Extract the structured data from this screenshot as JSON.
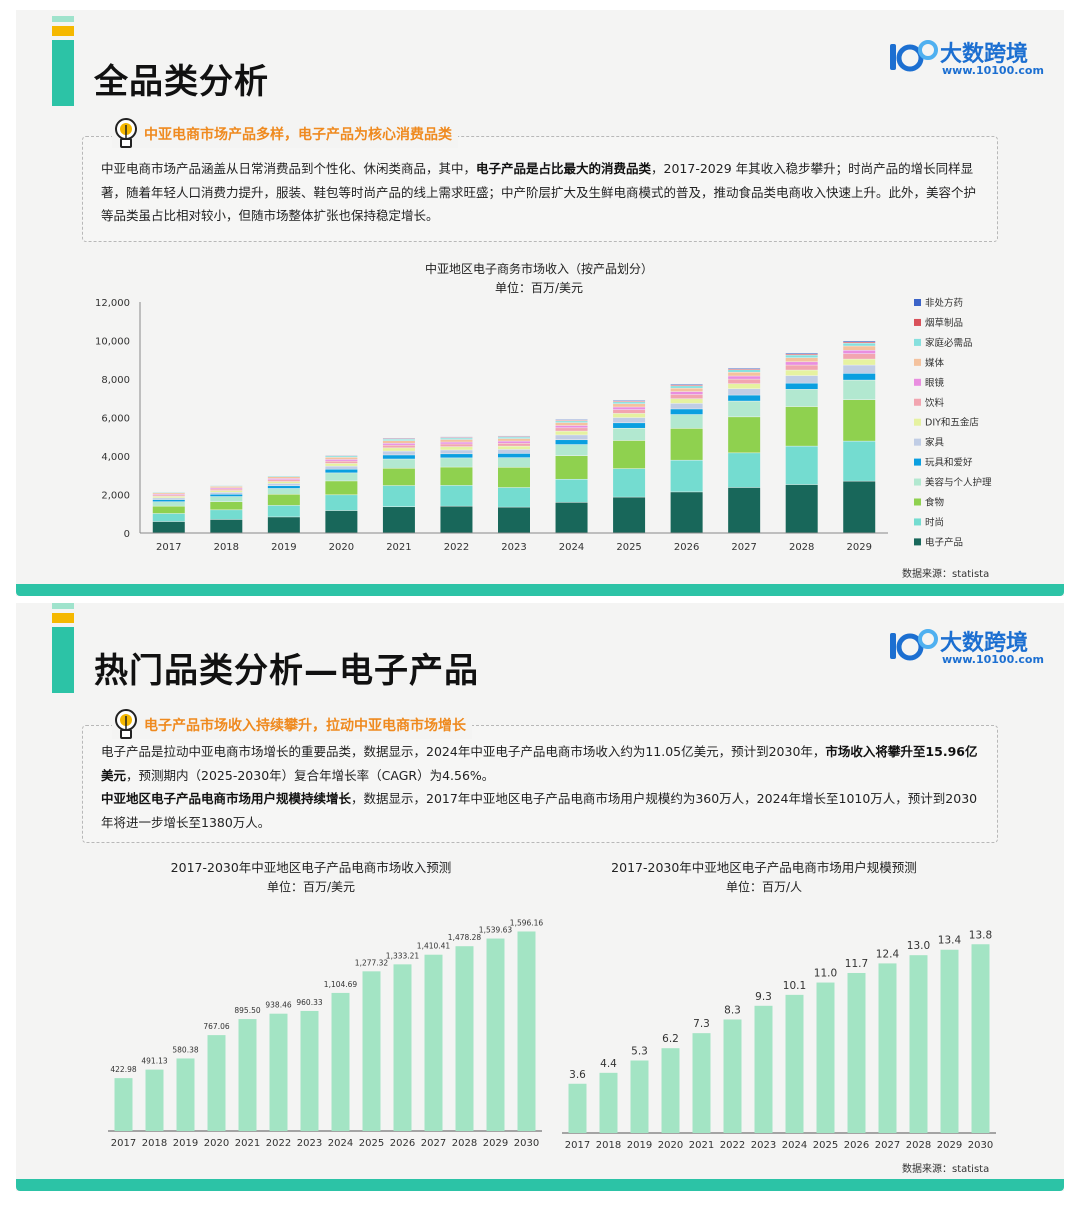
{
  "slide1": {
    "title": "全品类分析",
    "logo": {
      "name": "大数跨境",
      "url": "www.10100.com"
    },
    "heading": "中亚电商市场产品多样，电子产品为核心消费品类",
    "paragraph": {
      "p1": "中亚电商市场产品涵盖从日常消费品到个性化、休闲类商品，其中，",
      "p1_bold": "电子产品是占比最大的消费品类",
      "p1_rest": "，2017-2029 年其收入稳步攀升；时尚产品的增长同样显著，随着年轻人口消费力提升，服装、鞋包等时尚产品的线上需求旺盛；中产阶层扩大及生鲜电商模式的普及，推动食品类电商收入快速上升。此外，美容个护等品类虽占比相对较小，但随市场整体扩张也保持稳定增长。"
    },
    "source": "数据来源：statista"
  },
  "slide2": {
    "title": "热门品类分析—电子产品",
    "logo": {
      "name": "大数跨境",
      "url": "www.10100.com"
    },
    "heading": "电子产品市场收入持续攀升，拉动中亚电商市场增长",
    "paragraph": {
      "a1": "电子产品是拉动中亚电商市场增长的重要品类，数据显示，2024年中亚电子产品电商市场收入约为11.05亿美元，预计到2030年，",
      "a1_bold": "市场收入将攀升至15.96亿美元",
      "a1_rest": "，预测期内（2025-2030年）复合年增长率（CAGR）为4.56%。",
      "b1_bold": "中亚地区电子产品电商市场用户规模持续增长",
      "b1_rest": "，数据显示，2017年中亚地区电子产品电商市场用户规模约为360万人，2024年增长至1010万人，预计到2030年将进一步增长至1380万人。"
    },
    "source": "数据来源：statista"
  },
  "chart_data": [
    {
      "type": "bar",
      "stacked": true,
      "title": "中亚地区电子商务市场收入（按产品划分）",
      "subtitle": "单位：百万/美元",
      "categories": [
        "2017",
        "2018",
        "2019",
        "2020",
        "2021",
        "2022",
        "2023",
        "2024",
        "2025",
        "2026",
        "2027",
        "2028",
        "2029"
      ],
      "ylim": [
        0,
        12000
      ],
      "yticks": [
        0,
        2000,
        4000,
        6000,
        8000,
        10000,
        12000
      ],
      "ytick_labels": [
        "0",
        "2,000",
        "4,000",
        "6,000",
        "8,000",
        "10,000",
        "12,000"
      ],
      "legend_position": "right",
      "series": [
        {
          "name": "电子产品",
          "color": "#18675a",
          "values": [
            580,
            690,
            820,
            1150,
            1350,
            1380,
            1330,
            1580,
            1850,
            2120,
            2350,
            2500,
            2680
          ]
        },
        {
          "name": "时尚",
          "color": "#74dcd0",
          "values": [
            420,
            500,
            600,
            820,
            1100,
            1080,
            1020,
            1200,
            1480,
            1650,
            1800,
            2000,
            2080
          ]
        },
        {
          "name": "食物",
          "color": "#8fd14f",
          "values": [
            380,
            420,
            580,
            720,
            900,
            950,
            1050,
            1220,
            1460,
            1650,
            1870,
            2050,
            2150
          ]
        },
        {
          "name": "美容与个人护理",
          "color": "#b2e8d0",
          "values": [
            230,
            270,
            300,
            420,
            480,
            480,
            500,
            580,
            640,
            720,
            820,
            900,
            1020
          ]
        },
        {
          "name": "玩具和爱好",
          "color": "#0a9fe0",
          "values": [
            110,
            120,
            140,
            190,
            210,
            210,
            220,
            250,
            280,
            290,
            310,
            320,
            350
          ]
        },
        {
          "name": "家具",
          "color": "#c0cde5",
          "values": [
            90,
            100,
            120,
            160,
            200,
            200,
            210,
            250,
            270,
            290,
            330,
            390,
            430
          ]
        },
        {
          "name": "DIY和五金店",
          "color": "#e6f2a0",
          "values": [
            80,
            90,
            100,
            140,
            170,
            170,
            170,
            200,
            220,
            240,
            260,
            290,
            310
          ]
        },
        {
          "name": "饮料",
          "color": "#f2a5b0",
          "values": [
            70,
            80,
            90,
            120,
            140,
            140,
            150,
            170,
            190,
            220,
            240,
            260,
            280
          ]
        },
        {
          "name": "眼镜",
          "color": "#e98ee0",
          "values": [
            50,
            60,
            70,
            90,
            100,
            100,
            110,
            120,
            140,
            150,
            160,
            170,
            180
          ]
        },
        {
          "name": "媒体",
          "color": "#f4c29e",
          "values": [
            70,
            80,
            90,
            110,
            130,
            130,
            130,
            150,
            170,
            180,
            200,
            210,
            220
          ]
        },
        {
          "name": "家庭必需品",
          "color": "#86e0de",
          "values": [
            40,
            40,
            50,
            70,
            80,
            80,
            80,
            90,
            100,
            120,
            130,
            140,
            150
          ]
        },
        {
          "name": "烟草制品",
          "color": "#d9515a",
          "values": [
            20,
            20,
            25,
            30,
            35,
            35,
            35,
            40,
            45,
            50,
            50,
            55,
            60
          ]
        },
        {
          "name": "非处方药",
          "color": "#3c64c8",
          "values": [
            20,
            20,
            25,
            30,
            35,
            35,
            35,
            40,
            45,
            50,
            50,
            55,
            60
          ]
        }
      ]
    },
    {
      "type": "bar",
      "title": "2017-2030年中亚地区电子产品电商市场收入预测",
      "subtitle": "单位：百万/美元",
      "categories": [
        "2017",
        "2018",
        "2019",
        "2020",
        "2021",
        "2022",
        "2023",
        "2024",
        "2025",
        "2026",
        "2027",
        "2028",
        "2029",
        "2030"
      ],
      "values": [
        422.98,
        491.13,
        580.38,
        767.06,
        895.5,
        938.46,
        960.33,
        1104.69,
        1277.32,
        1333.21,
        1410.41,
        1478.28,
        1539.63,
        1596.16
      ],
      "labels": [
        "422.98",
        "491.13",
        "580.38",
        "767.06",
        "895.50",
        "938.46",
        "960.33",
        "1,104.69",
        "1,277.32",
        "1,333.21",
        "1,410.41",
        "1,478.28",
        "1,539.63",
        "1,596.16"
      ],
      "color": "#a3e4c4",
      "ylim": [
        0,
        1680
      ]
    },
    {
      "type": "bar",
      "title": "2017-2030年中亚地区电子产品电商市场用户规模预测",
      "subtitle": "单位：百万/人",
      "categories": [
        "2017",
        "2018",
        "2019",
        "2020",
        "2021",
        "2022",
        "2023",
        "2024",
        "2025",
        "2026",
        "2027",
        "2028",
        "2029",
        "2030"
      ],
      "values": [
        3.6,
        4.4,
        5.3,
        6.2,
        7.3,
        8.3,
        9.3,
        10.1,
        11.0,
        11.7,
        12.4,
        13.0,
        13.4,
        13.8
      ],
      "labels": [
        "3.6",
        "4.4",
        "5.3",
        "6.2",
        "7.3",
        "8.3",
        "9.3",
        "10.1",
        "11.0",
        "11.7",
        "12.4",
        "13.0",
        "13.4",
        "13.8"
      ],
      "color": "#a3e4c4",
      "ylim": [
        0,
        15.5
      ]
    }
  ]
}
